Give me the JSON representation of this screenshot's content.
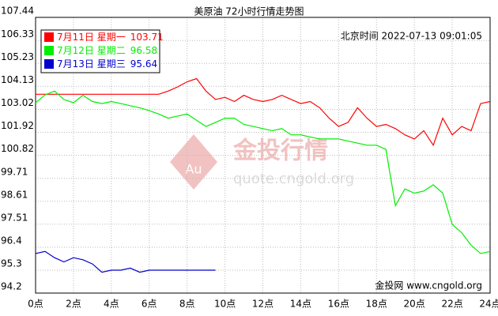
{
  "chart_data": {
    "type": "line",
    "title": "美原油 72小时行情走势图",
    "timestamp": "北京时间  2022-07-13 09:01:05",
    "watermark": "金投行情",
    "watermark_badge": "Au",
    "watermark_url": "quote.cngold.org",
    "source": "金投网 www.cngold.org",
    "grid": true,
    "legend": "upper left",
    "x": [
      0,
      0.5,
      1,
      1.5,
      2,
      2.5,
      3,
      3.5,
      4,
      4.5,
      5,
      5.5,
      6,
      6.5,
      7,
      7.5,
      8,
      8.5,
      9,
      9.5,
      10,
      10.5,
      11,
      11.5,
      12,
      12.5,
      13,
      13.5,
      14,
      14.5,
      15,
      15.5,
      16,
      16.5,
      17,
      17.5,
      18,
      18.5,
      19,
      19.5,
      20,
      20.5,
      21,
      21.5,
      22,
      22.5,
      23,
      23.5,
      24
    ],
    "xlim": [
      0,
      24
    ],
    "xticks": [
      {
        "value": 0,
        "label": "0点"
      },
      {
        "value": 2,
        "label": "2点"
      },
      {
        "value": 4,
        "label": "4点"
      },
      {
        "value": 6,
        "label": "6点"
      },
      {
        "value": 8,
        "label": "8点"
      },
      {
        "value": 10,
        "label": "10点"
      },
      {
        "value": 12,
        "label": "12点"
      },
      {
        "value": 14,
        "label": "14点"
      },
      {
        "value": 16,
        "label": "16点"
      },
      {
        "value": 18,
        "label": "18点"
      },
      {
        "value": 20,
        "label": "20点"
      },
      {
        "value": 22,
        "label": "22点"
      },
      {
        "value": 24,
        "label": "24点"
      }
    ],
    "ylim": [
      94.2,
      107.44
    ],
    "yticks": [
      107.44,
      106.33,
      105.23,
      104.13,
      103.02,
      101.92,
      100.82,
      99.71,
      98.61,
      97.51,
      96.4,
      95.3,
      94.2
    ],
    "series": [
      {
        "name": "7月11日 星期一",
        "legend_value": 103.71,
        "color": "#ff0000",
        "values": [
          103.75,
          103.75,
          103.75,
          103.75,
          103.75,
          103.75,
          103.75,
          103.75,
          103.75,
          103.75,
          103.75,
          103.75,
          103.75,
          103.75,
          103.9,
          104.1,
          104.35,
          104.5,
          103.9,
          103.5,
          103.6,
          103.4,
          103.7,
          103.5,
          103.4,
          103.5,
          103.7,
          103.5,
          103.3,
          103.4,
          103.1,
          102.6,
          102.2,
          102.4,
          103.1,
          102.6,
          102.2,
          102.3,
          102.1,
          101.8,
          101.6,
          102.0,
          101.3,
          102.6,
          101.8,
          102.2,
          102.0,
          103.3,
          103.4
        ]
      },
      {
        "name": "7月12日 星期二",
        "legend_value": 96.58,
        "color": "#00ee00",
        "values": [
          103.34,
          103.72,
          103.9,
          103.5,
          103.34,
          103.7,
          103.4,
          103.3,
          103.4,
          103.3,
          103.2,
          103.1,
          102.96,
          102.8,
          102.6,
          102.7,
          102.8,
          102.5,
          102.2,
          102.4,
          102.6,
          102.6,
          102.3,
          102.2,
          102.1,
          102.0,
          102.1,
          101.8,
          101.8,
          101.7,
          101.6,
          101.6,
          101.6,
          101.5,
          101.4,
          101.3,
          101.3,
          101.1,
          98.4,
          99.2,
          99.0,
          99.1,
          99.4,
          99.0,
          97.5,
          97.1,
          96.5,
          96.1,
          96.2
        ]
      },
      {
        "name": "7月13日 星期三",
        "legend_value": 95.64,
        "color": "#0000cc",
        "values": [
          96.1,
          96.2,
          95.9,
          95.7,
          95.9,
          95.8,
          95.6,
          95.2,
          95.3,
          95.3,
          95.4,
          95.2,
          95.3,
          95.3,
          95.3,
          95.3,
          95.3,
          95.3,
          95.3,
          95.3,
          null,
          null,
          null,
          null,
          null,
          null,
          null,
          null,
          null,
          null,
          null,
          null,
          null,
          null,
          null,
          null,
          null,
          null,
          null,
          null,
          null,
          null,
          null,
          null,
          null,
          null,
          null,
          null,
          null
        ]
      }
    ]
  }
}
